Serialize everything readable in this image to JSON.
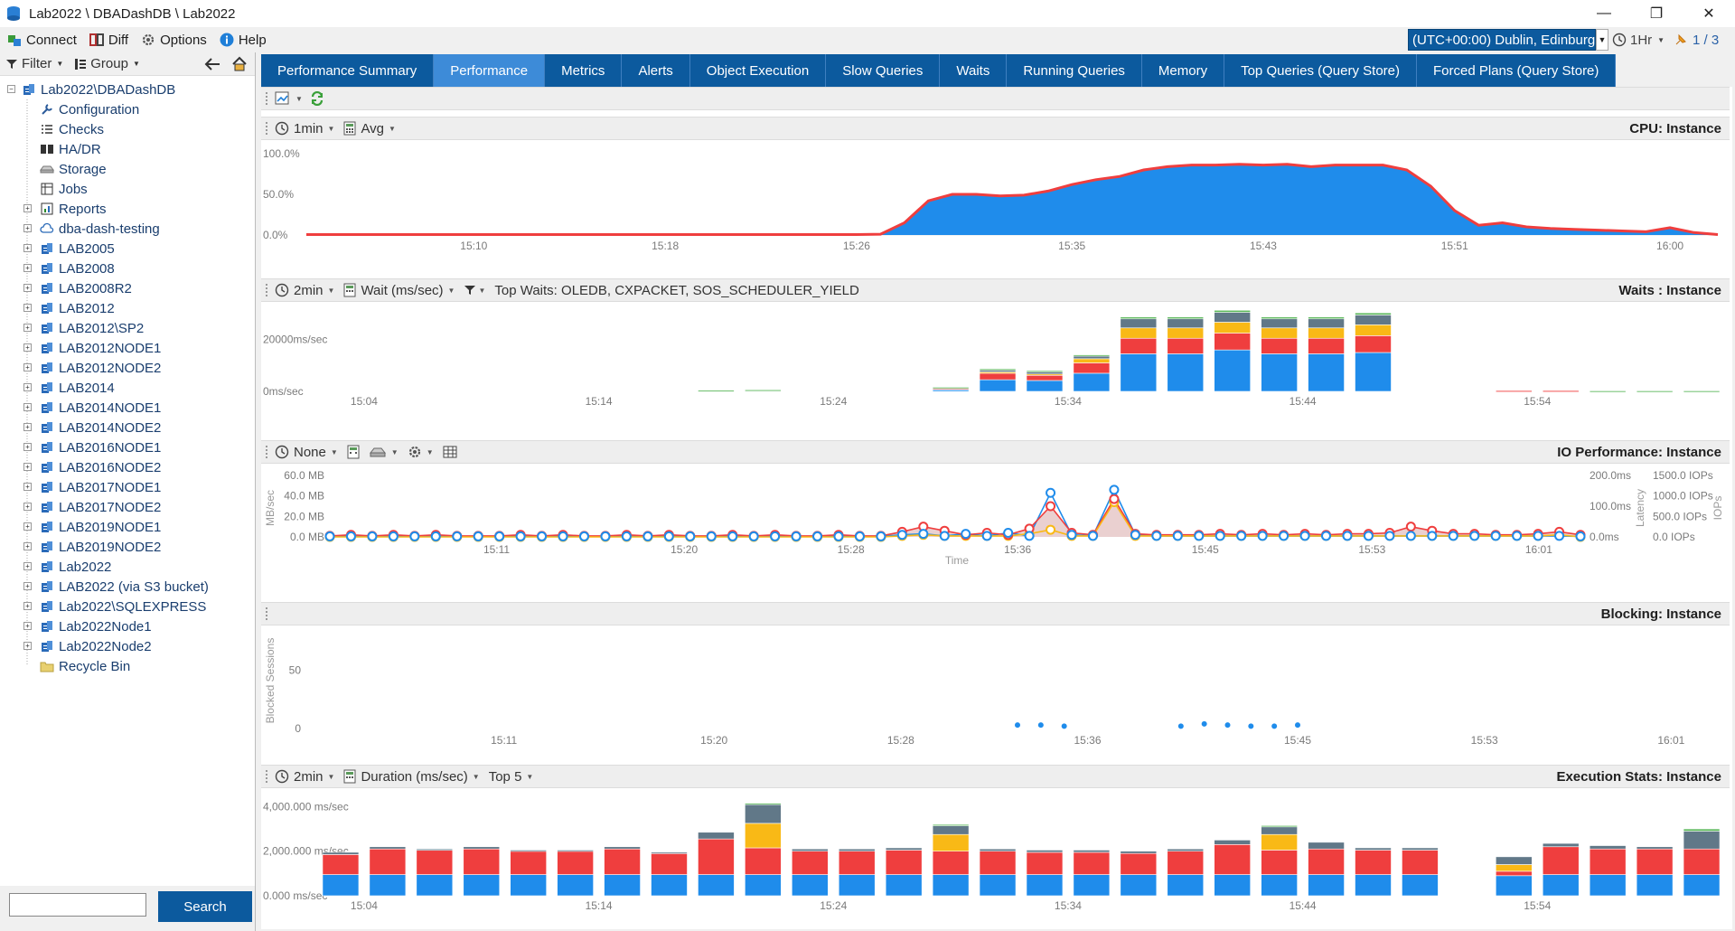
{
  "window": {
    "title": "Lab2022 \\ DBADashDB \\ Lab2022",
    "minimize": "—",
    "restore": "❐",
    "close": "✕"
  },
  "menu": {
    "connect": "Connect",
    "diff": "Diff",
    "options": "Options",
    "help": "Help"
  },
  "timezone": "(UTC+00:00) Dublin, Edinburg",
  "time_range": "1Hr",
  "pager": "1 / 3",
  "sidebar": {
    "filter_label": "Filter",
    "group_label": "Group",
    "root": "Lab2022\\DBADashDB",
    "root_children": [
      {
        "label": "Configuration",
        "icon": "wrench-icon"
      },
      {
        "label": "Checks",
        "icon": "checklist-icon"
      },
      {
        "label": "HA/DR",
        "icon": "hadr-icon"
      },
      {
        "label": "Storage",
        "icon": "storage-icon"
      },
      {
        "label": "Jobs",
        "icon": "jobs-icon"
      },
      {
        "label": "Reports",
        "icon": "reports-icon",
        "expandable": true
      },
      {
        "label": "dba-dash-testing",
        "icon": "cloud-icon",
        "expandable": true
      }
    ],
    "instances": [
      "LAB2005",
      "LAB2008",
      "LAB2008R2",
      "LAB2012",
      "LAB2012\\SP2",
      "LAB2012NODE1",
      "LAB2012NODE2",
      "LAB2014",
      "LAB2014NODE1",
      "LAB2014NODE2",
      "LAB2016NODE1",
      "LAB2016NODE2",
      "LAB2017NODE1",
      "LAB2017NODE2",
      "LAB2019NODE1",
      "LAB2019NODE2",
      "Lab2022",
      "LAB2022 (via S3 bucket)",
      "Lab2022\\SQLEXPRESS",
      "Lab2022Node1",
      "Lab2022Node2"
    ],
    "recycle_bin": "Recycle Bin",
    "search_placeholder": "",
    "search_button": "Search"
  },
  "tabs": [
    {
      "label": "Performance Summary",
      "active": false
    },
    {
      "label": "Performance",
      "active": true
    },
    {
      "label": "Metrics",
      "active": false
    },
    {
      "label": "Alerts",
      "active": false
    },
    {
      "label": "Object Execution",
      "active": false
    },
    {
      "label": "Slow Queries",
      "active": false
    },
    {
      "label": "Waits",
      "active": false
    },
    {
      "label": "Running Queries",
      "active": false
    },
    {
      "label": "Memory",
      "active": false
    },
    {
      "label": "Top Queries (Query Store)",
      "active": false
    },
    {
      "label": "Forced Plans (Query Store)",
      "active": false
    }
  ],
  "colors": {
    "accent": "#0c5a9e",
    "tab_active": "#3d8bd8",
    "blue": "#1f8ceb",
    "red": "#ef3e3e",
    "yellow": "#f9b916",
    "gray": "#617888",
    "green": "#5cb85c"
  },
  "panels": {
    "cpu": {
      "interval": "1min",
      "agg": "Avg",
      "title": "CPU: Instance"
    },
    "waits": {
      "interval": "2min",
      "metric": "Wait (ms/sec)",
      "top_waits": "Top Waits: OLEDB, CXPACKET, SOS_SCHEDULER_YIELD",
      "title": "Waits : Instance"
    },
    "io": {
      "interval": "None",
      "title": "IO Performance: Instance"
    },
    "blocking": {
      "title": "Blocking: Instance"
    },
    "exec": {
      "interval": "2min",
      "metric": "Duration (ms/sec)",
      "top": "Top 5",
      "title": "Execution Stats: Instance"
    }
  },
  "chart_data": [
    {
      "type": "area",
      "name": "cpu",
      "ylabel": "",
      "y_ticks": [
        "100.0%",
        "50.0%",
        "0.0%"
      ],
      "ylim": [
        0,
        100
      ],
      "x_tick_labels": [
        "15:10",
        "15:18",
        "15:26",
        "15:35",
        "15:43",
        "15:51",
        "16:00"
      ],
      "x_range": [
        "15:03",
        "16:02"
      ],
      "x": [
        "15:03",
        "15:25",
        "15:26",
        "15:27",
        "15:28",
        "15:29",
        "15:30",
        "15:31",
        "15:32",
        "15:33",
        "15:34",
        "15:35",
        "15:36",
        "15:37",
        "15:38",
        "15:39",
        "15:40",
        "15:41",
        "15:42",
        "15:43",
        "15:44",
        "15:45",
        "15:46",
        "15:47",
        "15:48",
        "15:49",
        "15:50",
        "15:51",
        "15:52",
        "15:53",
        "15:54",
        "15:55",
        "15:56",
        "15:57",
        "15:58",
        "15:59",
        "16:00",
        "16:01",
        "16:02"
      ],
      "series": [
        {
          "name": "",
          "values": [
            0.5,
            0.5,
            0.5,
            1,
            15,
            42,
            50,
            50,
            48,
            49,
            54,
            62,
            68,
            72,
            80,
            84,
            86,
            86,
            87,
            86,
            87,
            84,
            86,
            86,
            86,
            80,
            60,
            30,
            12,
            15,
            10,
            8,
            7,
            6,
            5,
            4,
            9,
            3,
            0.5
          ]
        }
      ]
    },
    {
      "type": "bar",
      "name": "waits",
      "stacked": true,
      "y_ticks": [
        "20000ms/sec",
        "0ms/sec"
      ],
      "ylim": [
        0,
        30000
      ],
      "x_tick_labels": [
        "15:04",
        "15:14",
        "15:24",
        "15:34",
        "15:44",
        "15:54"
      ],
      "categories": [
        "15:03",
        "15:05",
        "15:07",
        "15:09",
        "15:11",
        "15:13",
        "15:15",
        "15:17",
        "15:19",
        "15:21",
        "15:23",
        "15:25",
        "15:27",
        "15:29",
        "15:31",
        "15:33",
        "15:35",
        "15:37",
        "15:39",
        "15:41",
        "15:43",
        "15:45",
        "15:47",
        "15:49",
        "15:51",
        "15:53",
        "15:55",
        "15:57",
        "15:59",
        "16:01"
      ],
      "series": [
        {
          "name": "",
          "color": "#1f8ceb",
          "values": [
            0,
            0,
            0,
            0,
            0,
            0,
            0,
            0,
            0,
            0,
            0,
            0,
            0,
            600,
            4500,
            4200,
            7000,
            14500,
            14500,
            16000,
            14500,
            14500,
            15000,
            0,
            0,
            0,
            0,
            0,
            0,
            0
          ]
        },
        {
          "name": "",
          "color": "#ef3e3e",
          "values": [
            0,
            0,
            0,
            0,
            0,
            0,
            0,
            0,
            0,
            0,
            0,
            0,
            0,
            600,
            2500,
            2000,
            4000,
            6000,
            6000,
            6500,
            6000,
            6000,
            6500,
            0,
            0,
            300,
            300,
            0,
            0,
            0
          ]
        },
        {
          "name": "",
          "color": "#f9b916",
          "values": [
            0,
            0,
            0,
            0,
            0,
            0,
            0,
            0,
            0,
            0,
            0,
            0,
            0,
            0,
            500,
            500,
            1600,
            4000,
            4000,
            4200,
            4000,
            4000,
            4200,
            0,
            0,
            0,
            0,
            0,
            0,
            0
          ]
        },
        {
          "name": "",
          "color": "#617888",
          "values": [
            0,
            0,
            0,
            0,
            0,
            0,
            0,
            0,
            300,
            400,
            0,
            0,
            0,
            300,
            900,
            1000,
            1200,
            3500,
            3500,
            3800,
            3500,
            3500,
            3800,
            0,
            0,
            0,
            0,
            0,
            0,
            0
          ]
        },
        {
          "name": "",
          "color": "#5cb85c",
          "values": [
            0,
            0,
            0,
            0,
            0,
            0,
            0,
            0,
            100,
            200,
            0,
            0,
            0,
            100,
            300,
            300,
            300,
            700,
            700,
            800,
            700,
            700,
            800,
            0,
            0,
            0,
            0,
            200,
            200,
            200
          ]
        }
      ]
    },
    {
      "type": "line",
      "name": "io",
      "left_y_title": "MB/sec",
      "left_y_ticks": [
        "60.0 MB",
        "40.0 MB",
        "20.0 MB",
        "0.0 MB"
      ],
      "right1_y_title": "Latency",
      "right1_y_ticks": [
        "200.0ms",
        "100.0ms",
        "0.0ms"
      ],
      "right2_y_title": "IOPs",
      "right2_y_ticks": [
        "1500.0 IOPs",
        "1000.0 IOPs",
        "500.0 IOPs",
        "0.0 IOPs"
      ],
      "ylim": [
        0,
        60
      ],
      "xlabel": "Time",
      "x_tick_labels": [
        "15:11",
        "15:20",
        "15:28",
        "15:36",
        "15:45",
        "15:53",
        "16:01"
      ],
      "x_range": [
        "15:03",
        "16:03"
      ],
      "series": [
        {
          "name": "",
          "color": "#1f8ceb",
          "values": [
            0.5,
            0.5,
            0.5,
            0.5,
            0.5,
            0.5,
            0.5,
            0.5,
            0.5,
            0.5,
            0.5,
            0.5,
            0.5,
            0.5,
            0.5,
            0.5,
            0.5,
            0.5,
            0.5,
            0.5,
            0.5,
            0.5,
            0.5,
            0.5,
            0.5,
            0.5,
            0.5,
            2,
            3,
            1,
            3,
            1,
            4,
            1,
            43,
            2,
            1,
            46,
            2,
            1,
            1,
            1,
            1,
            1,
            1,
            1,
            1,
            1,
            1,
            1,
            1,
            1,
            1,
            1,
            1,
            1,
            1,
            1,
            1,
            0.5
          ]
        },
        {
          "name": "",
          "color": "#ef3e3e",
          "values": [
            1,
            2,
            1,
            2,
            1,
            2,
            1,
            1,
            1,
            2,
            1,
            2,
            1,
            1,
            2,
            1,
            2,
            1,
            1,
            2,
            1,
            2,
            1,
            1,
            2,
            1,
            1,
            5,
            10,
            6,
            2,
            4,
            2,
            8,
            30,
            4,
            2,
            37,
            3,
            2,
            2,
            2,
            3,
            2,
            3,
            2,
            3,
            2,
            3,
            3,
            4,
            10,
            6,
            3,
            3,
            2,
            2,
            3,
            5,
            2
          ]
        },
        {
          "name": "",
          "color": "#f9b916",
          "values": [
            0,
            0,
            0,
            0,
            0,
            0,
            0,
            0,
            0,
            0,
            0,
            0,
            0,
            0,
            0,
            0,
            0,
            0,
            0,
            0,
            0,
            0,
            0,
            0,
            0,
            0,
            0,
            1,
            2,
            1,
            1,
            1,
            1,
            3,
            7,
            1,
            1,
            34,
            1,
            1,
            1,
            1,
            1,
            1,
            1,
            1,
            1,
            1,
            1,
            1,
            1,
            1,
            1,
            1,
            1,
            1,
            1,
            1,
            2,
            0
          ]
        }
      ]
    },
    {
      "type": "scatter",
      "name": "blocking",
      "ylabel": "Blocked Sessions",
      "y_ticks": [
        "50",
        "0"
      ],
      "ylim": [
        0,
        80
      ],
      "x_tick_labels": [
        "15:11",
        "15:20",
        "15:28",
        "15:36",
        "15:45",
        "15:53",
        "16:01"
      ],
      "x_range": [
        "15:03",
        "16:03"
      ],
      "points": [
        {
          "x": "15:33",
          "y": 3
        },
        {
          "x": "15:34",
          "y": 3
        },
        {
          "x": "15:35",
          "y": 2
        },
        {
          "x": "15:40",
          "y": 2
        },
        {
          "x": "15:41",
          "y": 4
        },
        {
          "x": "15:42",
          "y": 3
        },
        {
          "x": "15:43",
          "y": 2
        },
        {
          "x": "15:44",
          "y": 2
        },
        {
          "x": "15:45",
          "y": 3
        }
      ]
    },
    {
      "type": "bar",
      "name": "exec",
      "stacked": true,
      "y_ticks": [
        "4,000.000 ms/sec",
        "2,000.000 ms/sec",
        "0.000 ms/sec"
      ],
      "ylim": [
        0,
        4300000
      ],
      "x_tick_labels": [
        "15:04",
        "15:14",
        "15:24",
        "15:34",
        "15:44",
        "15:54"
      ],
      "categories": [
        "15:03",
        "15:05",
        "15:07",
        "15:09",
        "15:11",
        "15:13",
        "15:15",
        "15:17",
        "15:19",
        "15:21",
        "15:23",
        "15:25",
        "15:27",
        "15:29",
        "15:31",
        "15:33",
        "15:35",
        "15:37",
        "15:39",
        "15:41",
        "15:43",
        "15:45",
        "15:47",
        "15:49",
        "15:51",
        "15:53",
        "15:55",
        "15:57",
        "15:59",
        "16:01"
      ],
      "series": [
        {
          "name": "",
          "color": "#1f8ceb",
          "values": [
            950000,
            950000,
            950000,
            950000,
            950000,
            950000,
            950000,
            950000,
            950000,
            950000,
            950000,
            950000,
            950000,
            950000,
            950000,
            950000,
            950000,
            950000,
            950000,
            950000,
            950000,
            950000,
            950000,
            950000,
            0,
            900000,
            950000,
            950000,
            950000,
            950000
          ]
        },
        {
          "name": "",
          "color": "#ef3e3e",
          "values": [
            900000,
            1150000,
            1100000,
            1150000,
            1050000,
            1050000,
            1150000,
            950000,
            1600000,
            1200000,
            1050000,
            1050000,
            1100000,
            1050000,
            1050000,
            1000000,
            1000000,
            950000,
            1050000,
            1350000,
            1100000,
            1150000,
            1100000,
            1100000,
            0,
            200000,
            1250000,
            1150000,
            1150000,
            1150000
          ]
        },
        {
          "name": "",
          "color": "#f9b916",
          "values": [
            0,
            0,
            0,
            0,
            0,
            0,
            0,
            0,
            0,
            1100000,
            0,
            0,
            0,
            750000,
            0,
            0,
            0,
            0,
            0,
            0,
            700000,
            0,
            0,
            0,
            0,
            300000,
            0,
            0,
            0,
            0
          ]
        },
        {
          "name": "",
          "color": "#617888",
          "values": [
            100000,
            100000,
            50000,
            100000,
            50000,
            50000,
            100000,
            50000,
            300000,
            850000,
            100000,
            100000,
            100000,
            400000,
            100000,
            100000,
            100000,
            100000,
            100000,
            200000,
            350000,
            300000,
            100000,
            100000,
            0,
            350000,
            150000,
            150000,
            100000,
            800000
          ]
        },
        {
          "name": "",
          "color": "#5cb85c",
          "values": [
            0,
            0,
            0,
            0,
            0,
            0,
            0,
            0,
            0,
            50000,
            0,
            0,
            0,
            50000,
            0,
            0,
            0,
            0,
            0,
            0,
            50000,
            0,
            0,
            0,
            0,
            0,
            0,
            0,
            0,
            100000
          ]
        }
      ]
    }
  ]
}
